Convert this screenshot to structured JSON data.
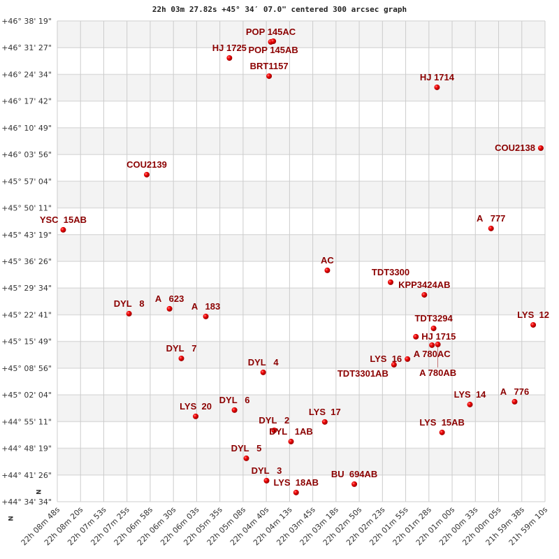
{
  "chart_data": {
    "type": "scatter",
    "title": "22h 03m 27.82s +45° 34′ 07.0\" centered 300 arcsec graph",
    "xlabel": "",
    "ylabel": "",
    "xlim": [
      "22h 08m 48s",
      "21h 59m 10s"
    ],
    "ylim": [
      "+44° 34' 34\"",
      "+46° 38' 19\""
    ],
    "grid": true,
    "x_ticks": [
      "22h 08m 48s",
      "22h 08m 20s",
      "22h 07m 53s",
      "22h 07m 25s",
      "22h 06m 58s",
      "22h 06m 30s",
      "22h 06m 03s",
      "22h 05m 35s",
      "22h 05m 08s",
      "22h 04m 40s",
      "22h 04m 13s",
      "22h 03m 45s",
      "22h 03m 18s",
      "22h 02m 50s",
      "22h 02m 23s",
      "22h 01m 55s",
      "22h 01m 28s",
      "22h 01m 00s",
      "22h 00m 33s",
      "22h 00m 05s",
      "21h 59m 38s",
      "21h 59m 10s"
    ],
    "y_ticks": [
      "+46° 38' 19\"",
      "+46° 31' 27\"",
      "+46° 24' 34\"",
      "+46° 17' 42\"",
      "+46° 10' 49\"",
      "+46° 03' 56\"",
      "+45° 57' 04\"",
      "+45° 50' 11\"",
      "+45° 43' 19\"",
      "+45° 36' 26\"",
      "+45° 29' 34\"",
      "+45° 22' 41\"",
      "+45° 15' 49\"",
      "+45° 08' 56\"",
      "+45° 02' 04\"",
      "+44° 55' 11\"",
      "+44° 48' 19\"",
      "+44° 41' 26\"",
      "+44° 34' 34\""
    ],
    "north_marker": "N",
    "colors": {
      "point": "#dd0000",
      "label": "#8b0000",
      "band": "#f3f3f3",
      "grid": "#cccccc"
    },
    "points": [
      {
        "name": "POP 145AC",
        "ra": "22 04 35",
        "dec": "+46 32 55"
      },
      {
        "name": "POP 145AB",
        "ra": "22 04 32",
        "dec": "+46 33 06"
      },
      {
        "name": "HJ 1725",
        "ra": "22 05 24",
        "dec": "+46 28 47"
      },
      {
        "name": "BRT1157",
        "ra": "22 04 37",
        "dec": "+46 24 07"
      },
      {
        "name": "HJ 1714",
        "ra": "22 01 18",
        "dec": "+46 21 14"
      },
      {
        "name": "COU2138",
        "ra": "21 59 15",
        "dec": "+46 05 35"
      },
      {
        "name": "COU2139",
        "ra": "22 07 02",
        "dec": "+45 58 45"
      },
      {
        "name": "YSC  15AB",
        "ra": "22 08 41",
        "dec": "+45 44 33"
      },
      {
        "name": "A   777",
        "ra": "22 00 14",
        "dec": "+45 44 54"
      },
      {
        "name": "AC",
        "ra": "22 03 28",
        "dec": "+45 34 07"
      },
      {
        "name": "TDT3300",
        "ra": "22 02 13",
        "dec": "+45 31 04"
      },
      {
        "name": "KPP3424AB",
        "ra": "22 01 33",
        "dec": "+45 27 49"
      },
      {
        "name": "DYL   8",
        "ra": "22 07 23",
        "dec": "+45 22 58"
      },
      {
        "name": "A   623",
        "ra": "22 06 35",
        "dec": "+45 24 14"
      },
      {
        "name": "A   183",
        "ra": "22 05 52",
        "dec": "+45 22 15"
      },
      {
        "name": "LYS  12",
        "ra": "21 59 24",
        "dec": "+45 20 05"
      },
      {
        "name": "TDT3294",
        "ra": "22 01 22",
        "dec": "+45 19 11"
      },
      {
        "name": "HJ 1715",
        "ra": "22 01 43",
        "dec": "+45 17 02"
      },
      {
        "name": "A 780AC",
        "ra": "22 01 24",
        "dec": "+45 14 52"
      },
      {
        "name": "A 780AB",
        "ra": "22 01 17",
        "dec": "+45 15 03"
      },
      {
        "name": "LYS  16",
        "ra": "22 01 53",
        "dec": "+45 11 17"
      },
      {
        "name": "TDT3301AB",
        "ra": "22 02 09",
        "dec": "+45 09 50"
      },
      {
        "name": "DYL   7",
        "ra": "22 06 21",
        "dec": "+45 11 27"
      },
      {
        "name": "DYL   4",
        "ra": "22 04 44",
        "dec": "+45 07 52"
      },
      {
        "name": "LYS  20",
        "ra": "22 06 04",
        "dec": "+44 56 32"
      },
      {
        "name": "DYL   6",
        "ra": "22 05 18",
        "dec": "+44 58 09"
      },
      {
        "name": "LYS  17",
        "ra": "22 03 31",
        "dec": "+44 55 06"
      },
      {
        "name": "DYL   2",
        "ra": "22 04 31",
        "dec": "+44 52 56"
      },
      {
        "name": "DYL   1AB",
        "ra": "22 04 11",
        "dec": "+44 50 03"
      },
      {
        "name": "DYL   5",
        "ra": "22 05 04",
        "dec": "+44 45 44"
      },
      {
        "name": "DYL   3",
        "ra": "22 04 40",
        "dec": "+44 39 59"
      },
      {
        "name": "LYS  18AB",
        "ra": "22 04 05",
        "dec": "+44 36 56"
      },
      {
        "name": "BU  694AB",
        "ra": "22 02 56",
        "dec": "+44 39 05"
      },
      {
        "name": "LYS  14",
        "ra": "22 00 39",
        "dec": "+44 59 35"
      },
      {
        "name": "A   776",
        "ra": "21 59 46",
        "dec": "+45 00 18"
      },
      {
        "name": "LYS  15AB",
        "ra": "22 01 12",
        "dec": "+44 52 24"
      }
    ]
  }
}
